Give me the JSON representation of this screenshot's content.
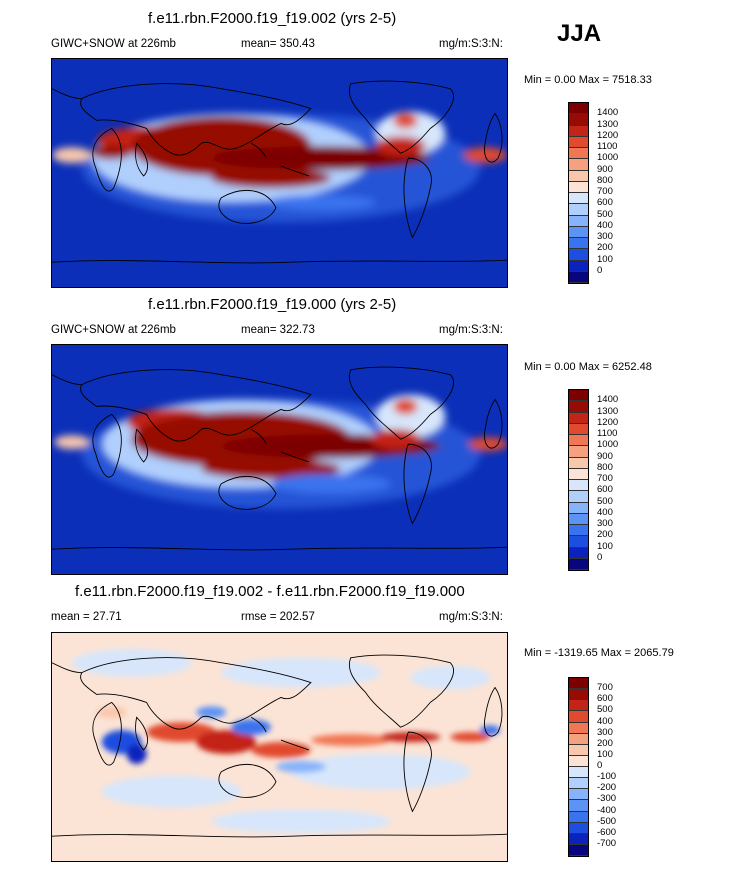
{
  "season": "JJA",
  "panels": [
    {
      "title": "f.e11.rbn.F2000.f19_f19.002 (yrs 2-5)",
      "left_label": "GIWC+SNOW at 226mb",
      "stat_label": "mean= 350.43",
      "units": "mg/m:S:3:N:",
      "minmax": "Min =  0.00 Max = 7518.33",
      "colorbar_colors": [
        "#07067f",
        "#0b22bd",
        "#1c4ee0",
        "#3a73ee",
        "#5d93f5",
        "#86b3fb",
        "#b0cffd",
        "#d7e6fb",
        "#fbe4d6",
        "#f9c7ac",
        "#f5a07f",
        "#f17653",
        "#e04a2d",
        "#c32418",
        "#960b04",
        "#7d0000"
      ],
      "colorbar_labels": [
        "1400",
        "1300",
        "1200",
        "1100",
        "1000",
        "900",
        "800",
        "700",
        "600",
        "500",
        "400",
        "300",
        "200",
        "100",
        "0"
      ],
      "map_icon": "world-contour-map-icon"
    },
    {
      "title": "f.e11.rbn.F2000.f19_f19.000 (yrs 2-5)",
      "left_label": "GIWC+SNOW at 226mb",
      "stat_label": "mean= 322.73",
      "units": "mg/m:S:3:N:",
      "minmax": "Min =  0.00 Max = 6252.48",
      "colorbar_colors": [
        "#07067f",
        "#0b22bd",
        "#1c4ee0",
        "#3a73ee",
        "#5d93f5",
        "#86b3fb",
        "#b0cffd",
        "#d7e6fb",
        "#fbe4d6",
        "#f9c7ac",
        "#f5a07f",
        "#f17653",
        "#e04a2d",
        "#c32418",
        "#960b04",
        "#7d0000"
      ],
      "colorbar_labels": [
        "1400",
        "1300",
        "1200",
        "1100",
        "1000",
        "900",
        "800",
        "700",
        "600",
        "500",
        "400",
        "300",
        "200",
        "100",
        "0"
      ],
      "map_icon": "world-contour-map-icon"
    },
    {
      "title": "f.e11.rbn.F2000.f19_f19.002 - f.e11.rbn.F2000.f19_f19.000",
      "left_label": "mean =  27.71",
      "stat_label": "rmse = 202.57",
      "units": "mg/m:S:3:N:",
      "minmax": "Min = -1319.65 Max = 2065.79",
      "colorbar_colors": [
        "#07067f",
        "#0b22bd",
        "#1c4ee0",
        "#3a73ee",
        "#5d93f5",
        "#86b3fb",
        "#b0cffd",
        "#d7e6fb",
        "#fbe4d6",
        "#f9c7ac",
        "#f5a07f",
        "#f17653",
        "#e04a2d",
        "#c32418",
        "#960b04",
        "#7d0000"
      ],
      "colorbar_labels": [
        "700",
        "600",
        "500",
        "400",
        "300",
        "200",
        "100",
        "0",
        "-100",
        "-200",
        "-300",
        "-400",
        "-500",
        "-600",
        "-700"
      ],
      "map_icon": "world-difference-map-icon"
    }
  ]
}
